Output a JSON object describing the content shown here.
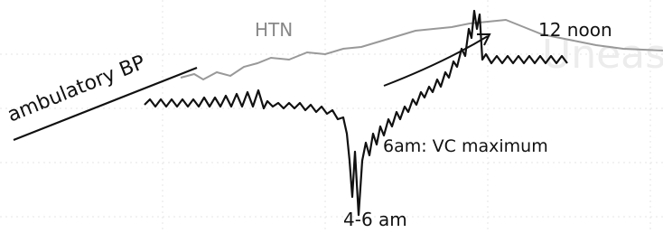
{
  "labels": {
    "ambulatory": "ambulatory BP",
    "htn": "HTN",
    "noon": "12 noon",
    "vc_max": "6am: VC maximum",
    "trough": "4-6 am"
  },
  "watermark": "Uneask"
}
